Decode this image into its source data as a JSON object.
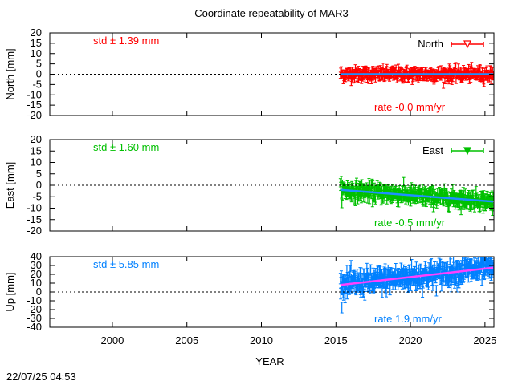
{
  "title": "Coordinate repeatability of MAR3",
  "xlabel": "YEAR",
  "timestamp": "22/07/25 04:53",
  "chart_data": [
    {
      "type": "scatter",
      "name": "North",
      "ylabel": "North [mm]",
      "ylim": [
        -20,
        20
      ],
      "yticks": [
        -20,
        -15,
        -10,
        -5,
        0,
        5,
        10,
        15,
        20
      ],
      "xlim": [
        1995.8,
        2025.6
      ],
      "std_label": "std ± 1.39 mm",
      "rate_label": "rate -0.0 mm/yr",
      "legend": "North",
      "color": "#ff0000",
      "trend_color": "#1e90ff",
      "marker": "triangle-down-open",
      "data_start": 2015.3,
      "data_end": 2025.55,
      "std": 1.39,
      "rate": 0.0,
      "mean_at_start": 0.0,
      "err": 1.5
    },
    {
      "type": "scatter",
      "name": "East",
      "ylabel": "East [mm]",
      "ylim": [
        -20,
        20
      ],
      "yticks": [
        -20,
        -15,
        -10,
        -5,
        0,
        5,
        10,
        15,
        20
      ],
      "xlim": [
        1995.8,
        2025.6
      ],
      "std_label": "std ± 1.60 mm",
      "rate_label": "rate -0.5 mm/yr",
      "legend": "East",
      "color": "#00c000",
      "trend_color": "#1e90ff",
      "marker": "triangle-down-filled",
      "data_start": 2015.3,
      "data_end": 2025.55,
      "std": 1.6,
      "rate": -0.5,
      "mean_at_start": -2.0,
      "err": 1.8
    },
    {
      "type": "scatter",
      "name": "Up",
      "ylabel": "Up [mm]",
      "ylim": [
        -40,
        40
      ],
      "yticks": [
        -40,
        -30,
        -20,
        -10,
        0,
        10,
        20,
        30,
        40
      ],
      "xlim": [
        1995.8,
        2025.6
      ],
      "std_label": "std ± 5.85 mm",
      "rate_label": "rate  1.9 mm/yr",
      "legend": "",
      "color": "#0080ff",
      "trend_color": "#ff40ff",
      "marker": "none",
      "data_start": 2015.3,
      "data_end": 2025.55,
      "std": 5.85,
      "rate": 1.9,
      "mean_at_start": 8.0,
      "err": 6.0
    }
  ],
  "xticks": [
    2000,
    2005,
    2010,
    2015,
    2020,
    2025
  ]
}
